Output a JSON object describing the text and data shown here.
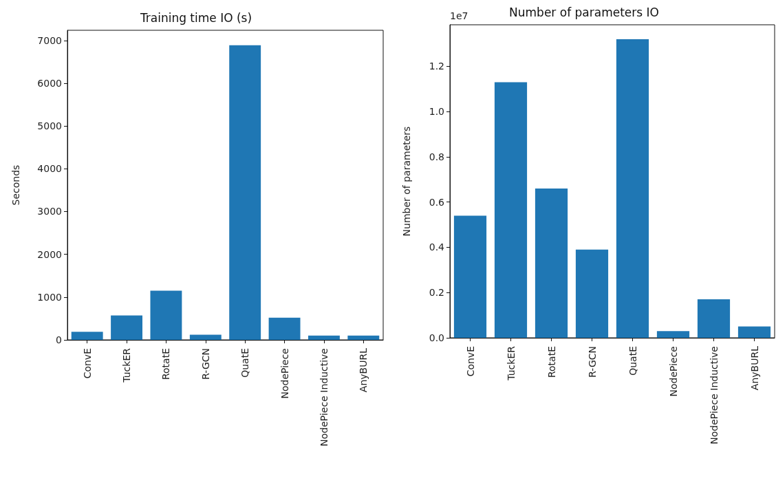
{
  "chart_data": [
    {
      "type": "bar",
      "title": "Training time IO (s)",
      "ylabel": "Seconds",
      "categories": [
        "ConvE",
        "TuckER",
        "RotatE",
        "R-GCN",
        "QuatE",
        "NodePiece",
        "NodePiece Inductive",
        "AnyBURL"
      ],
      "values": [
        190,
        570,
        1150,
        120,
        6890,
        520,
        100,
        100
      ],
      "color": "#1f77b4",
      "ylim": [
        0,
        7238
      ],
      "yticks": [
        0,
        1000,
        2000,
        3000,
        4000,
        5000,
        6000,
        7000
      ],
      "grid": false
    },
    {
      "type": "bar",
      "title": "Number of parameters IO",
      "ylabel": "Number of parameters",
      "annotations": [
        "1e7"
      ],
      "categories": [
        "ConvE",
        "TuckER",
        "RotatE",
        "R-GCN",
        "QuatE",
        "NodePiece",
        "NodePiece Inductive",
        "AnyBURL"
      ],
      "values": [
        0.54,
        1.13,
        0.66,
        0.39,
        1.32,
        0.03,
        0.17,
        0.05
      ],
      "color": "#1f77b4",
      "ylim": [
        0,
        1.384
      ],
      "yticks": [
        {
          "value": 0,
          "label": "0.0"
        },
        0.2,
        0.4,
        0.6,
        0.8,
        {
          "value": 1,
          "label": "1.0"
        },
        1.2
      ],
      "grid": false
    }
  ]
}
